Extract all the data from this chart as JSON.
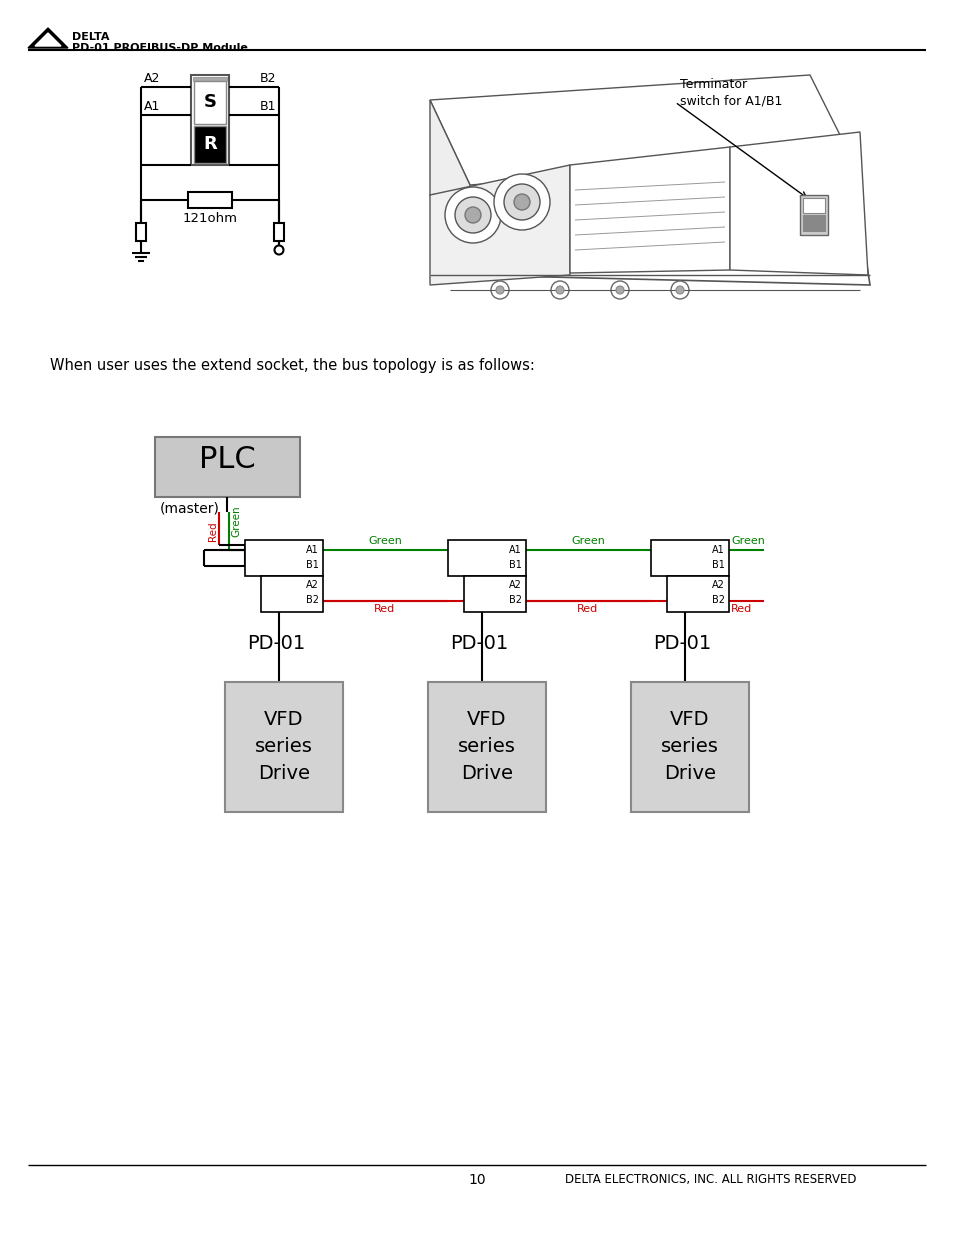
{
  "page_title": "PD-01 PROFIBUS-DP Module",
  "footer_page": "10",
  "footer_right": "DELTA ELECTRONICS, INC. ALL RIGHTS RESERVED",
  "bg_color": "#ffffff",
  "text_color": "#000000",
  "intro_text": "When user uses the extend socket, the bus topology is as follows:",
  "plc_label": "PLC",
  "plc_sub": "(master)",
  "pd01_label": "PD-01",
  "vfd_line1": "VFD",
  "vfd_line2": "series",
  "vfd_line3": "Drive",
  "terminator_line1": "Terminator",
  "terminator_line2": "switch for A1/B1",
  "resistor_label": "121ohm",
  "green_color": "#008000",
  "red_color": "#cc0000",
  "light_gray": "#d3d3d3",
  "plc_gray_light": "#e0e0e0",
  "plc_gray_dark": "#aaaaaa"
}
